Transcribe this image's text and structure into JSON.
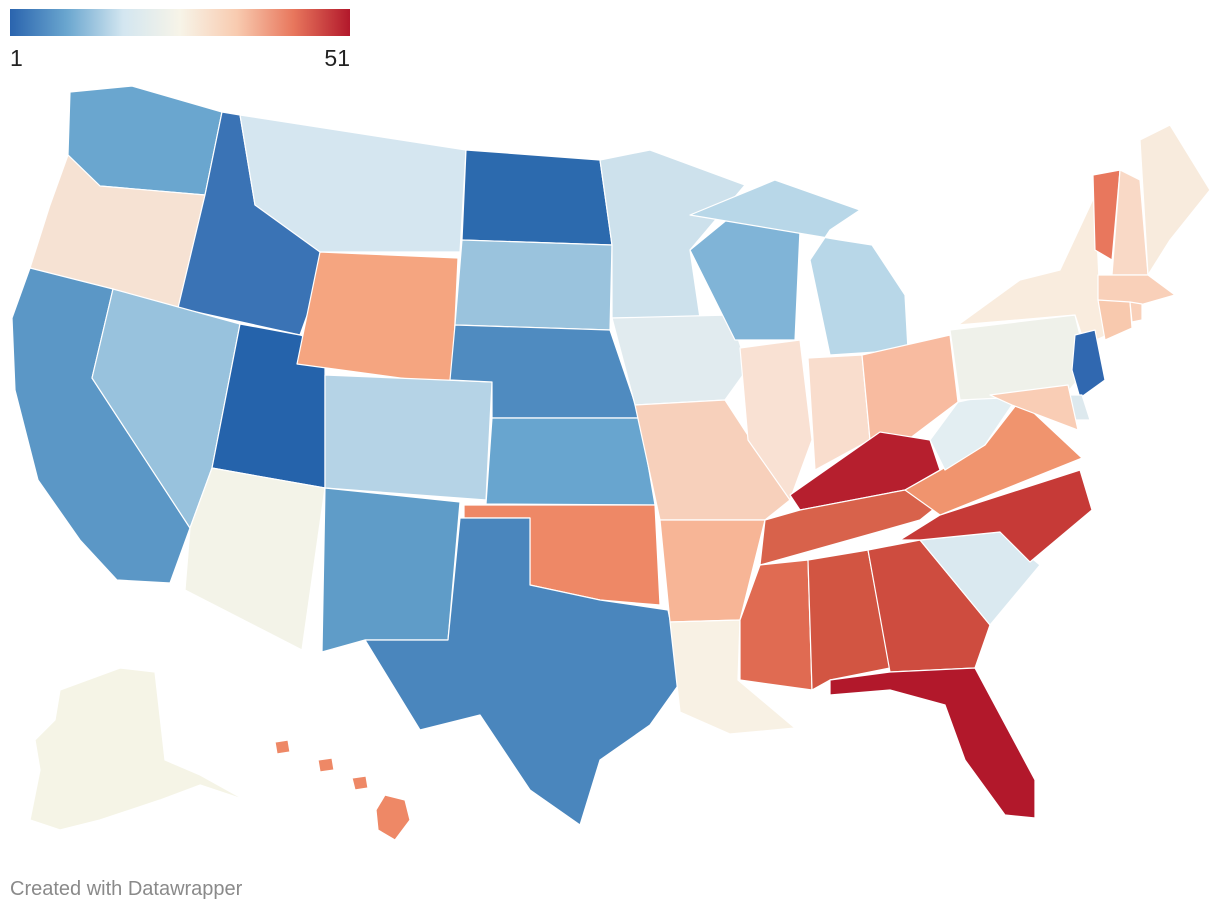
{
  "legend": {
    "min_label": "1",
    "max_label": "51",
    "colors": [
      "#2a64ae",
      "#6aa6cf",
      "#d3e6f0",
      "#f7f4e8",
      "#f8cbb0",
      "#e8775d",
      "#b2182b"
    ]
  },
  "credit": "Created with Datawrapper",
  "chart_data": {
    "type": "choropleth",
    "scale": {
      "min": 1,
      "max": 51
    },
    "regions": [
      {
        "id": "WA",
        "color": "#6aa6cf"
      },
      {
        "id": "OR",
        "color": "#f6e2d3"
      },
      {
        "id": "CA",
        "color": "#5b97c6"
      },
      {
        "id": "ID",
        "color": "#3a73b5"
      },
      {
        "id": "NV",
        "color": "#98c2dd"
      },
      {
        "id": "UT",
        "color": "#2563ab"
      },
      {
        "id": "AZ",
        "color": "#f3f3e8"
      },
      {
        "id": "MT",
        "color": "#d5e6f0"
      },
      {
        "id": "WY",
        "color": "#f5a580"
      },
      {
        "id": "CO",
        "color": "#b5d3e6"
      },
      {
        "id": "NM",
        "color": "#5f9cc8"
      },
      {
        "id": "ND",
        "color": "#2c6aae"
      },
      {
        "id": "SD",
        "color": "#9ac3dd"
      },
      {
        "id": "NE",
        "color": "#4f8bc0"
      },
      {
        "id": "KS",
        "color": "#68a5cf"
      },
      {
        "id": "OK",
        "color": "#ee8866"
      },
      {
        "id": "TX",
        "color": "#4a86bd"
      },
      {
        "id": "MN",
        "color": "#cde1ec"
      },
      {
        "id": "IA",
        "color": "#e1ebef"
      },
      {
        "id": "MO",
        "color": "#f7d0bb"
      },
      {
        "id": "AR",
        "color": "#f7b596"
      },
      {
        "id": "LA",
        "color": "#f8f1e4"
      },
      {
        "id": "WI",
        "color": "#80b4d7"
      },
      {
        "id": "IL",
        "color": "#f9e1d3"
      },
      {
        "id": "MI",
        "color": "#b8d7e8"
      },
      {
        "id": "IN",
        "color": "#f9ddcd"
      },
      {
        "id": "OH",
        "color": "#f8bba0"
      },
      {
        "id": "KY",
        "color": "#b61f2e"
      },
      {
        "id": "TN",
        "color": "#d8624b"
      },
      {
        "id": "MS",
        "color": "#e06b52"
      },
      {
        "id": "AL",
        "color": "#d25542"
      },
      {
        "id": "GA",
        "color": "#ce4c3f"
      },
      {
        "id": "FL",
        "color": "#b2182b"
      },
      {
        "id": "SC",
        "color": "#dae9f0"
      },
      {
        "id": "NC",
        "color": "#c63a37"
      },
      {
        "id": "VA",
        "color": "#f0946e"
      },
      {
        "id": "WV",
        "color": "#e3eef2"
      },
      {
        "id": "PA",
        "color": "#eff1ea"
      },
      {
        "id": "NY",
        "color": "#f9ecde"
      },
      {
        "id": "VT",
        "color": "#e8775d"
      },
      {
        "id": "NH",
        "color": "#f9d9c6"
      },
      {
        "id": "ME",
        "color": "#f8ebdd"
      },
      {
        "id": "MA",
        "color": "#f9d0b9"
      },
      {
        "id": "RI",
        "color": "#f9d0b9"
      },
      {
        "id": "CT",
        "color": "#f8c9ae"
      },
      {
        "id": "NJ",
        "color": "#3068b0"
      },
      {
        "id": "DE",
        "color": "#dde9ee"
      },
      {
        "id": "MD",
        "color": "#f9cdb5"
      },
      {
        "id": "AK",
        "color": "#f5f4e6"
      },
      {
        "id": "HI",
        "color": "#ee8866"
      }
    ]
  }
}
